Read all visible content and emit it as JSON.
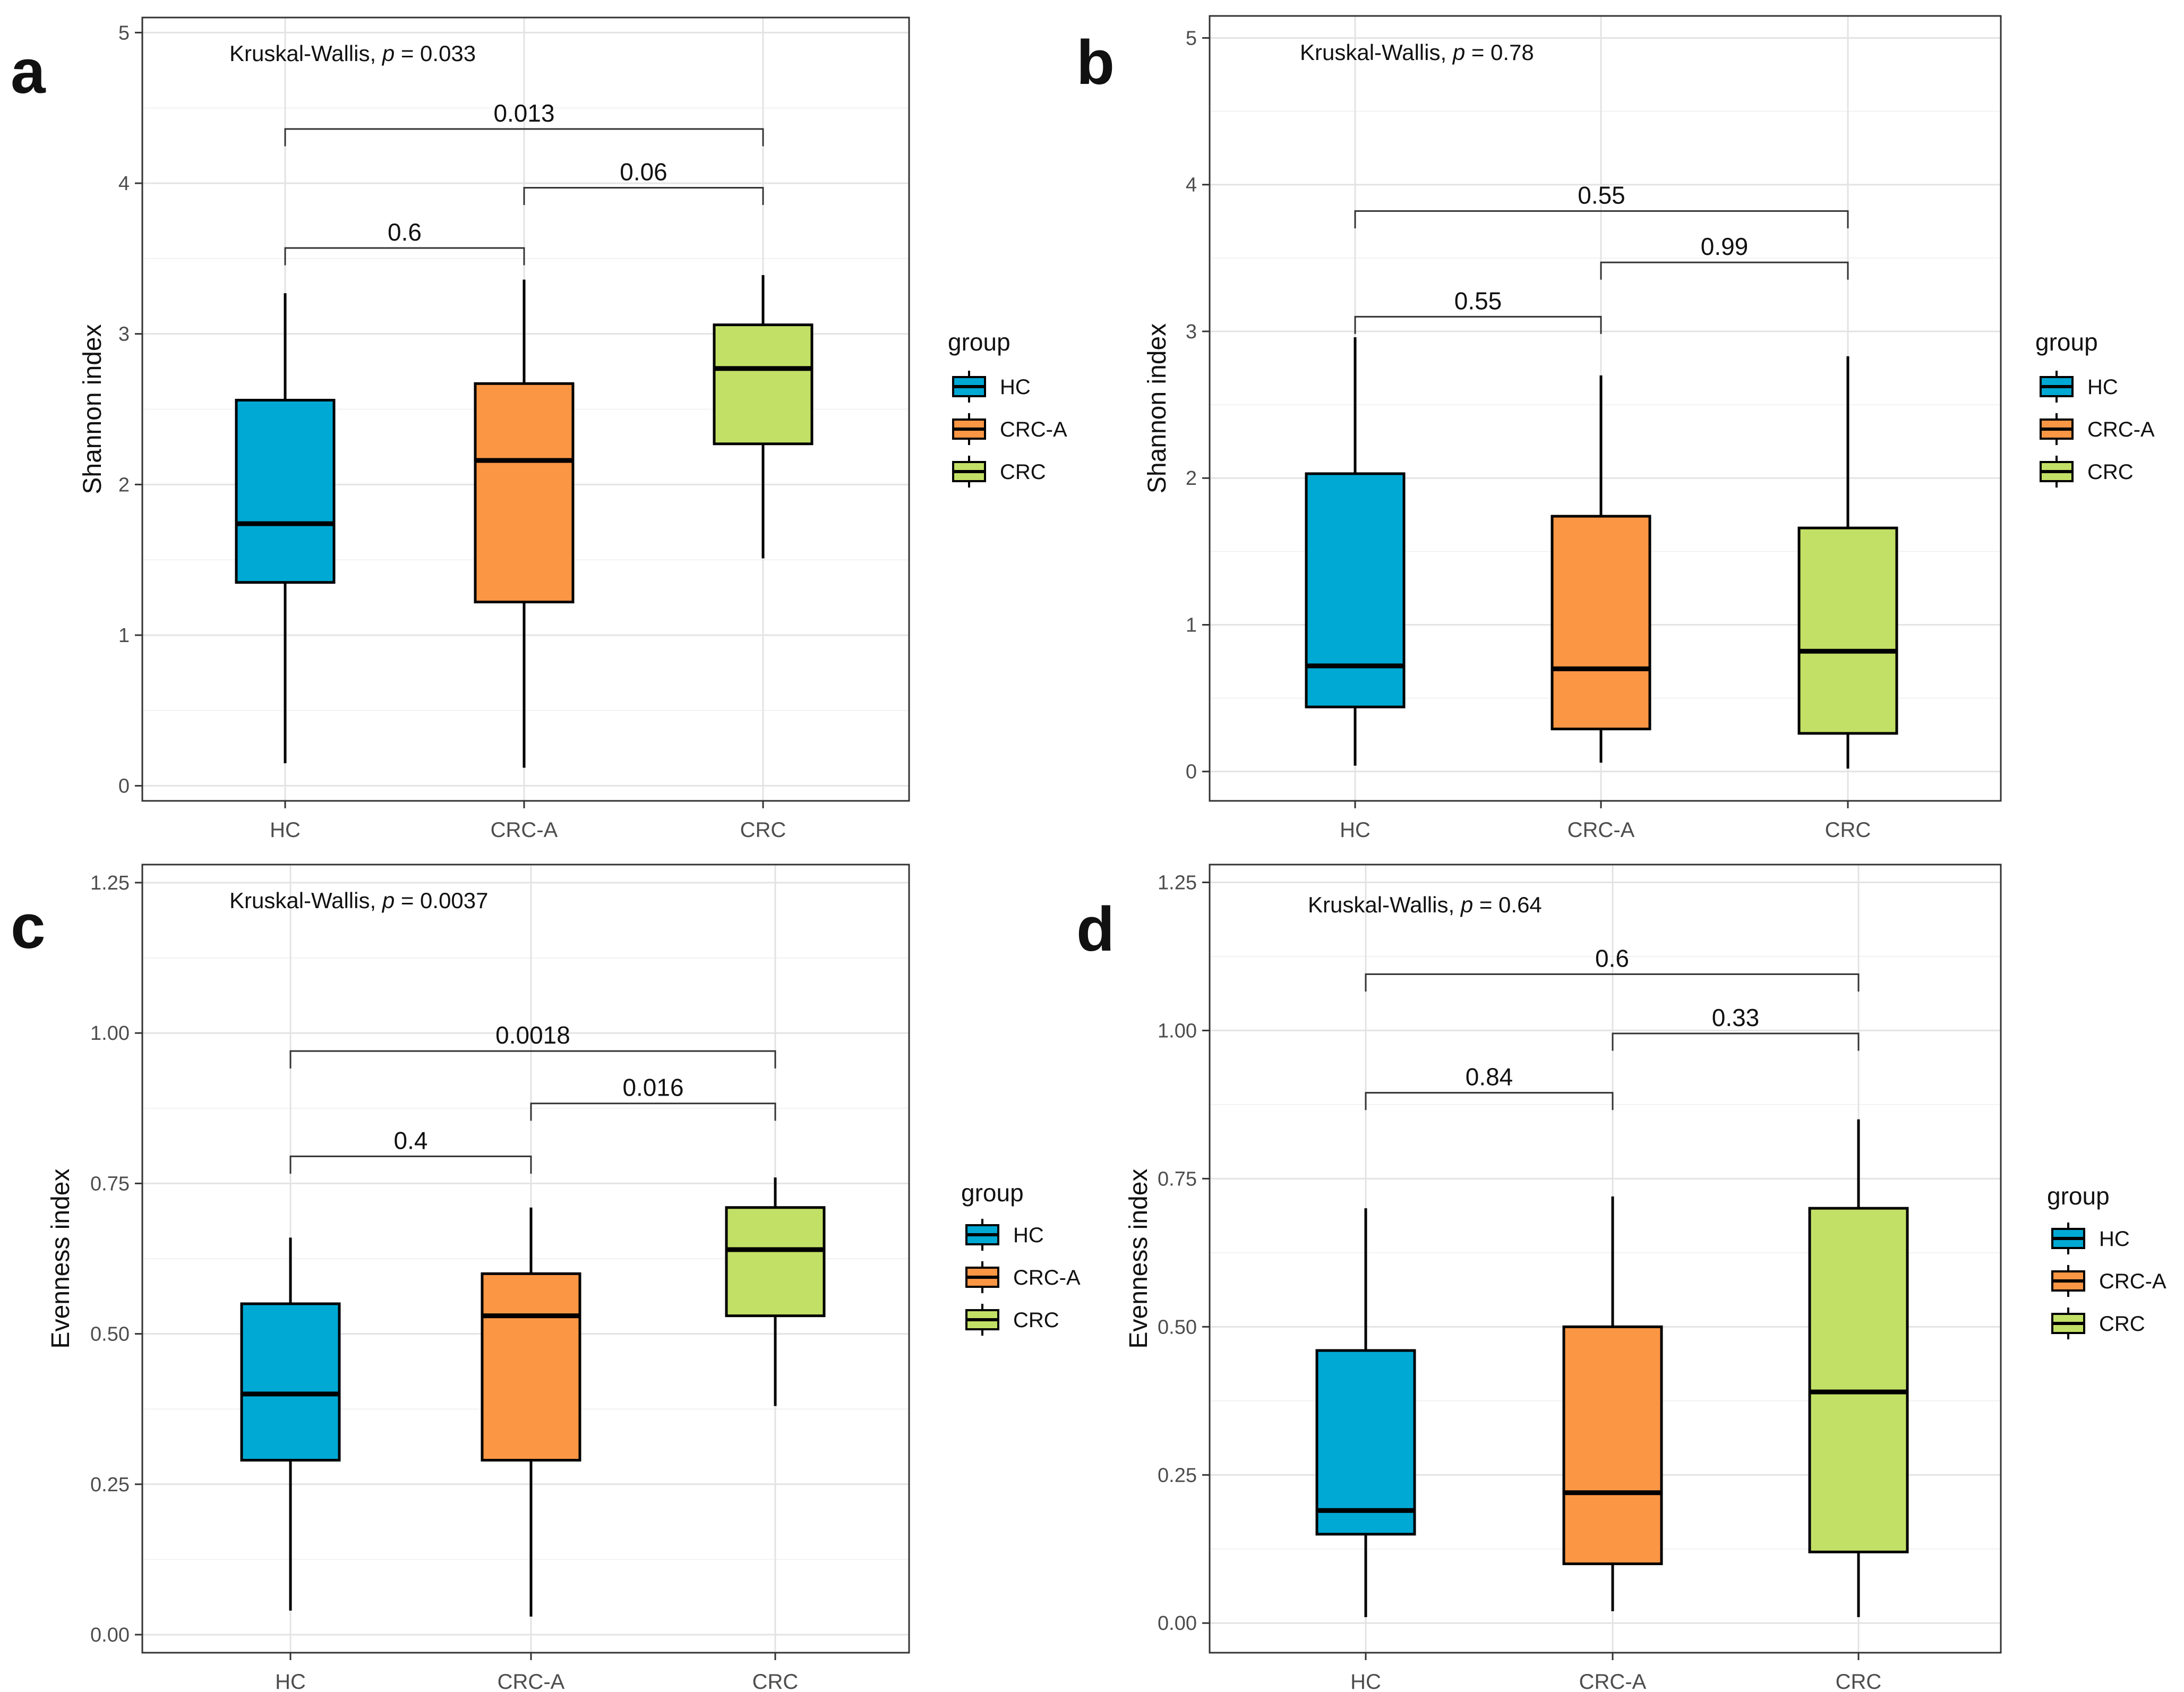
{
  "figure": {
    "legend_title": "group",
    "colors": {
      "HC": "#00a9d4",
      "CRC-A": "#fb9645",
      "CRC": "#c3e066"
    }
  },
  "chart_data": [
    {
      "panel": "a",
      "type": "box",
      "title": "",
      "xlabel": "",
      "ylabel": "Shannon index",
      "ylim": [
        -0.1,
        5.1
      ],
      "yticks": [
        0,
        1,
        2,
        3,
        4,
        5
      ],
      "ytick_labels": [
        "0",
        "1",
        "2",
        "3",
        "4",
        "5"
      ],
      "categories": [
        "HC",
        "CRC-A",
        "CRC"
      ],
      "series": [
        {
          "name": "HC",
          "min": 0.15,
          "q1": 1.35,
          "median": 1.74,
          "q3": 2.56,
          "max": 3.27
        },
        {
          "name": "CRC-A",
          "min": 0.12,
          "q1": 1.22,
          "median": 2.16,
          "q3": 2.67,
          "max": 3.36
        },
        {
          "name": "CRC",
          "min": 1.51,
          "q1": 2.27,
          "median": 2.77,
          "q3": 3.06,
          "max": 3.39
        }
      ],
      "test_label": "Kruskal-Wallis, ",
      "test_p_symbol": "p",
      "test_p_value": " = 0.033",
      "comparisons": [
        {
          "group1": "HC",
          "group2": "CRC-A",
          "y": 3.57,
          "label": "0.6"
        },
        {
          "group1": "CRC-A",
          "group2": "CRC",
          "y": 3.97,
          "label": "0.06"
        },
        {
          "group1": "HC",
          "group2": "CRC",
          "y": 4.36,
          "label": "0.013"
        }
      ],
      "legend": [
        "HC",
        "CRC-A",
        "CRC"
      ]
    },
    {
      "panel": "b",
      "type": "box",
      "title": "",
      "xlabel": "",
      "ylabel": "Shannon index",
      "ylim": [
        -0.2,
        5.15
      ],
      "yticks": [
        0,
        1,
        2,
        3,
        4,
        5
      ],
      "ytick_labels": [
        "0",
        "1",
        "2",
        "3",
        "4",
        "5"
      ],
      "categories": [
        "HC",
        "CRC-A",
        "CRC"
      ],
      "series": [
        {
          "name": "HC",
          "min": 0.04,
          "q1": 0.44,
          "median": 0.72,
          "q3": 2.03,
          "max": 2.96
        },
        {
          "name": "CRC-A",
          "min": 0.06,
          "q1": 0.29,
          "median": 0.7,
          "q3": 1.74,
          "max": 2.7
        },
        {
          "name": "CRC",
          "min": 0.02,
          "q1": 0.26,
          "median": 0.82,
          "q3": 1.66,
          "max": 2.83
        }
      ],
      "test_label": "Kruskal-Wallis, ",
      "test_p_symbol": "p",
      "test_p_value": " = 0.78",
      "comparisons": [
        {
          "group1": "HC",
          "group2": "CRC-A",
          "y": 3.1,
          "label": "0.55"
        },
        {
          "group1": "CRC-A",
          "group2": "CRC",
          "y": 3.47,
          "label": "0.99"
        },
        {
          "group1": "HC",
          "group2": "CRC",
          "y": 3.82,
          "label": "0.55"
        }
      ],
      "legend": [
        "HC",
        "CRC-A",
        "CRC"
      ]
    },
    {
      "panel": "c",
      "type": "box",
      "title": "",
      "xlabel": "",
      "ylabel": "Evenness index",
      "ylim": [
        -0.03,
        1.28
      ],
      "yticks": [
        0,
        0.25,
        0.5,
        0.75,
        1.0,
        1.25
      ],
      "ytick_labels": [
        "0.00",
        "0.25",
        "0.50",
        "0.75",
        "1.00",
        "1.25"
      ],
      "categories": [
        "HC",
        "CRC-A",
        "CRC"
      ],
      "series": [
        {
          "name": "HC",
          "min": 0.04,
          "q1": 0.29,
          "median": 0.4,
          "q3": 0.55,
          "max": 0.66
        },
        {
          "name": "CRC-A",
          "min": 0.03,
          "q1": 0.29,
          "median": 0.53,
          "q3": 0.6,
          "max": 0.71
        },
        {
          "name": "CRC",
          "min": 0.38,
          "q1": 0.53,
          "median": 0.64,
          "q3": 0.71,
          "max": 0.76
        }
      ],
      "test_label": "Kruskal-Wallis, ",
      "test_p_symbol": "p",
      "test_p_value": " = 0.0037",
      "comparisons": [
        {
          "group1": "HC",
          "group2": "CRC-A",
          "y": 0.795,
          "label": "0.4"
        },
        {
          "group1": "CRC-A",
          "group2": "CRC",
          "y": 0.883,
          "label": "0.016"
        },
        {
          "group1": "HC",
          "group2": "CRC",
          "y": 0.97,
          "label": "0.0018"
        }
      ],
      "legend": [
        "HC",
        "CRC-A",
        "CRC"
      ]
    },
    {
      "panel": "d",
      "type": "box",
      "title": "",
      "xlabel": "",
      "ylabel": "Evenness index",
      "ylim": [
        -0.05,
        1.28
      ],
      "yticks": [
        0,
        0.25,
        0.5,
        0.75,
        1.0,
        1.25
      ],
      "ytick_labels": [
        "0.00",
        "0.25",
        "0.50",
        "0.75",
        "1.00",
        "1.25"
      ],
      "categories": [
        "HC",
        "CRC-A",
        "CRC"
      ],
      "series": [
        {
          "name": "HC",
          "min": 0.01,
          "q1": 0.15,
          "median": 0.19,
          "q3": 0.46,
          "max": 0.7
        },
        {
          "name": "CRC-A",
          "min": 0.02,
          "q1": 0.1,
          "median": 0.22,
          "q3": 0.5,
          "max": 0.72
        },
        {
          "name": "CRC",
          "min": 0.01,
          "q1": 0.12,
          "median": 0.39,
          "q3": 0.7,
          "max": 0.85
        }
      ],
      "test_label": "Kruskal-Wallis, ",
      "test_p_symbol": "p",
      "test_p_value": " = 0.64",
      "comparisons": [
        {
          "group1": "HC",
          "group2": "CRC-A",
          "y": 0.895,
          "label": "0.84"
        },
        {
          "group1": "CRC-A",
          "group2": "CRC",
          "y": 0.995,
          "label": "0.33"
        },
        {
          "group1": "HC",
          "group2": "CRC",
          "y": 1.095,
          "label": "0.6"
        }
      ],
      "legend": [
        "HC",
        "CRC-A",
        "CRC"
      ]
    }
  ]
}
